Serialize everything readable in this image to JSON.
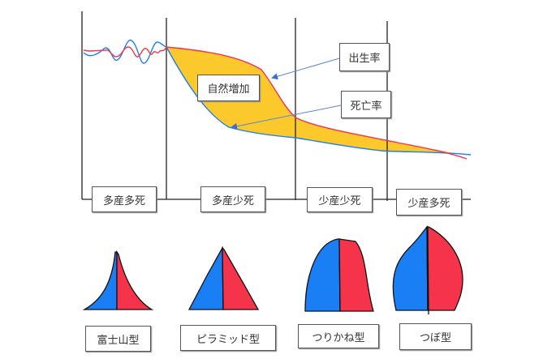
{
  "stages": [
    "多産多死",
    "多産少死",
    "少産少死",
    "少産多死"
  ],
  "curve_labels": {
    "birth_rate": "出生率",
    "death_rate": "死亡率",
    "natural_increase": "自然増加"
  },
  "pyramids": [
    "富士山型",
    "ピラミッド型",
    "つりかね型",
    "つぼ型"
  ],
  "colors": {
    "birth_rate": "#f5334a",
    "death_rate": "#1a7ef5",
    "natural_increase": "#fcc92c",
    "male": "#1a7ef5",
    "female": "#f5334a"
  }
}
